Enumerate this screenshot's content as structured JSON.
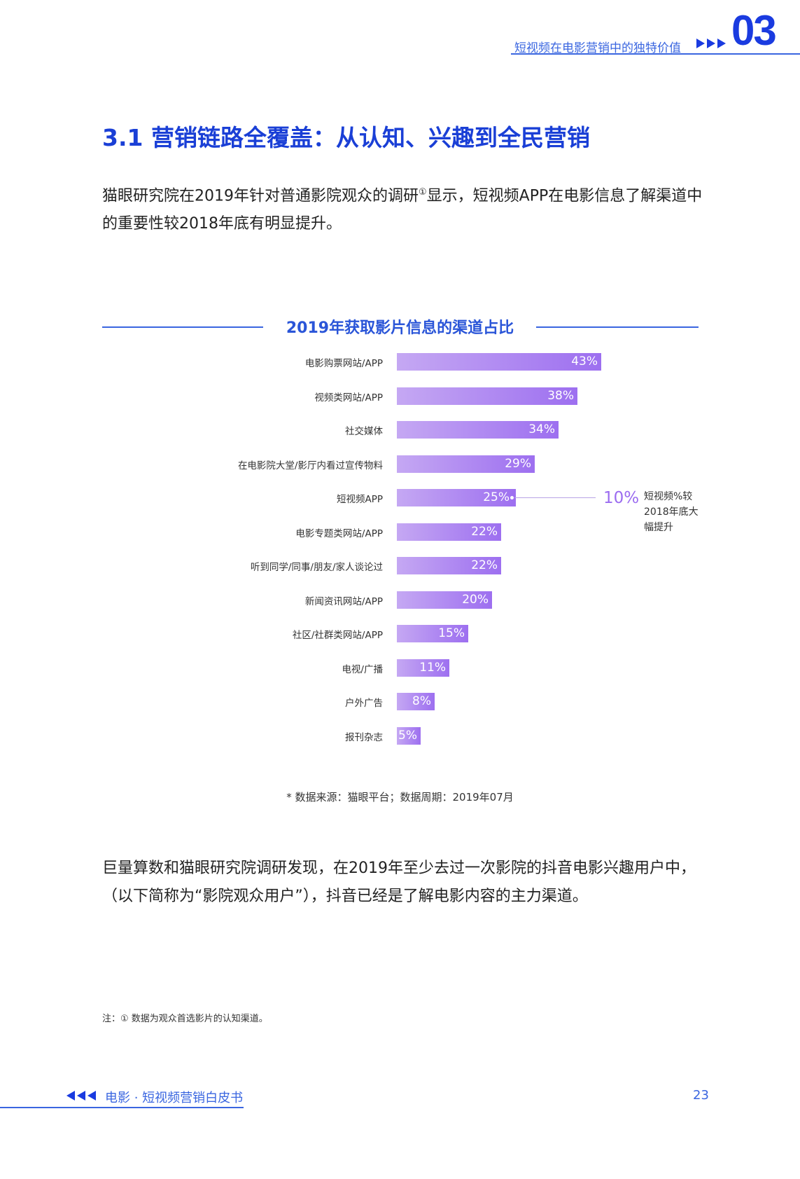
{
  "header": {
    "chapter_title": "短视频在电影营销中的独特价值",
    "chapter_number": "03"
  },
  "section": {
    "title": "3.1 营销链路全覆盖：从认知、兴趣到全民营销"
  },
  "paragraph1": {
    "before": "猫眼研究院在2019年针对普通影院观众的调研",
    "note_mark": "①",
    "after": "显示，短视频APP在电影信息了解渠道中的重要性较2018年底有明显提升。"
  },
  "chart_data": {
    "type": "bar",
    "title": "2019年获取影片信息的渠道占比",
    "categories": [
      "电影购票网站/APP",
      "视频类网站/APP",
      "社交媒体",
      "在电影院大堂/影厅内看过宣传物料",
      "短视频APP",
      "电影专题类网站/APP",
      "听到同学/同事/朋友/家人谈论过",
      "新闻资讯网站/APP",
      "社区/社群类网站/APP",
      "电视/广播",
      "户外广告",
      "报刊杂志"
    ],
    "values": [
      43,
      38,
      34,
      29,
      25,
      22,
      22,
      20,
      15,
      11,
      8,
      5
    ],
    "value_labels": [
      "43%",
      "38%",
      "34%",
      "29%",
      "25%",
      "22%",
      "22%",
      "20%",
      "15%",
      "11%",
      "8%",
      "5%"
    ],
    "xlim": [
      0,
      43
    ],
    "annotation": {
      "category": "短视频APP",
      "value_label": "10%",
      "text": "短视频%较2018年底大幅提升"
    },
    "bar_color_start": "#c5a8f3",
    "bar_color_end": "#9d6ff0"
  },
  "source": "* 数据来源：猫眼平台；数据周期：2019年07月",
  "paragraph2": "巨量算数和猫眼研究院调研发现，在2019年至少去过一次影院的抖音电影兴趣用户中，（以下简称为“影院观众用户”），抖音已经是了解电影内容的主力渠道。",
  "footnote": "注：① 数据为观众首选影片的认知渠道。",
  "footer": {
    "publication": "电影 · 短视频营销白皮书",
    "page_number": "23"
  },
  "colors": {
    "accent": "#3a66e0",
    "title_blue": "#1a3fd6",
    "callout_purple": "#9b6cf0"
  }
}
